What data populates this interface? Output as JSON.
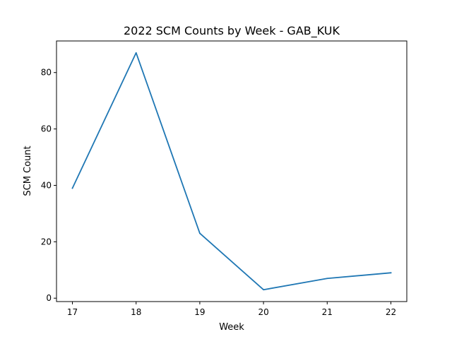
{
  "chart_data": {
    "type": "line",
    "title": "2022 SCM Counts by Week - GAB_KUK",
    "xlabel": "Week",
    "ylabel": "SCM Count",
    "x": [
      17,
      18,
      19,
      20,
      21,
      22
    ],
    "xticks": [
      "17",
      "18",
      "19",
      "20",
      "21",
      "22"
    ],
    "yticks": [
      "0",
      "20",
      "40",
      "60",
      "80"
    ],
    "xlim": [
      16.75,
      22.25
    ],
    "ylim": [
      -1.2,
      91.2
    ],
    "grid": false,
    "series": [
      {
        "values": [
          39,
          87,
          23,
          3,
          7,
          9
        ],
        "color": "#1f77b4"
      }
    ]
  }
}
